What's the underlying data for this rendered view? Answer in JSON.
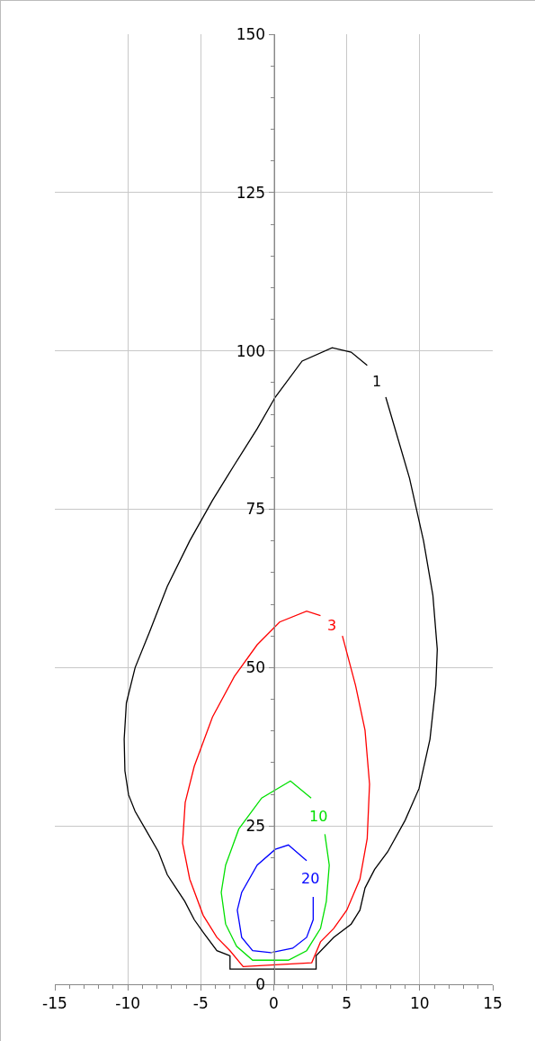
{
  "chart_data": {
    "type": "line",
    "xlim": [
      -15,
      15
    ],
    "ylim": [
      0,
      150
    ],
    "xticks": [
      -15,
      -10,
      -5,
      0,
      5,
      10,
      15
    ],
    "yticks": [
      0,
      25,
      50,
      75,
      100,
      125,
      150
    ],
    "grid": true,
    "marker": "none",
    "line_style": "solid",
    "legend": false,
    "series": [
      {
        "name": "1",
        "color": "#000000",
        "x": [
          7.67,
          9.3,
          10.26,
          10.9,
          11.2,
          11.1,
          10.7,
          9.95,
          9.0,
          7.8,
          6.9,
          6.25,
          5.9,
          5.3,
          4.1,
          2.9,
          2.9,
          -3,
          -3,
          -3.9,
          -4.8,
          -5.45,
          -6.1,
          -6.7,
          -7.3,
          -7.9,
          -8.8,
          -9.5,
          -9.95,
          -10.2,
          -10.25,
          -10.1,
          -9.5,
          -8.5,
          -7.3,
          -5.76,
          -4.2,
          -2.7,
          -1.14,
          0.1,
          1.94,
          4.0,
          5.3,
          6.4
        ],
        "values": [
          92.7,
          79.9,
          70,
          61.4,
          52.9,
          47.2,
          38.7,
          30.9,
          25.9,
          20.9,
          18.1,
          15.2,
          11.7,
          9.5,
          7.4,
          4.5,
          2.4,
          2.4,
          4.5,
          5.3,
          8.1,
          10.2,
          13.1,
          15.2,
          17.3,
          20.9,
          24.5,
          27.3,
          29.9,
          33.7,
          38.7,
          44.4,
          50,
          55.7,
          62.8,
          70,
          76.4,
          82,
          87.7,
          92.7,
          98.4,
          100.5,
          99.8,
          97.7
        ]
      },
      {
        "name": "3",
        "color": "#ff0000",
        "x": [
          4.7,
          5.6,
          6.25,
          6.56,
          6.4,
          5.9,
          5.0,
          4.1,
          3.2,
          2.6,
          -2.1,
          -3,
          -3.9,
          -4.84,
          -5.76,
          -6.25,
          -6.07,
          -5.45,
          -4.2,
          -2.7,
          -1.14,
          0.4,
          2.25,
          3.2
        ],
        "values": [
          55,
          47.2,
          40.1,
          31.6,
          23,
          16.6,
          11.7,
          8.8,
          6.7,
          3.4,
          2.8,
          5.3,
          7.4,
          10.9,
          16.6,
          22.3,
          28.7,
          34.4,
          42.2,
          48.6,
          53.6,
          57.2,
          58.9,
          58.2
        ]
      },
      {
        "name": "10",
        "color": "#00e000",
        "x": [
          3.5,
          3.8,
          3.6,
          3.2,
          2.25,
          1,
          -1.45,
          -2.55,
          -3.3,
          -3.6,
          -3.3,
          -2.4,
          -0.83,
          1.14,
          2.56
        ],
        "values": [
          23.7,
          18.8,
          13.1,
          8.8,
          5.3,
          3.8,
          3.8,
          6,
          9.5,
          14.5,
          18.8,
          24.5,
          29.4,
          32.1,
          29.4
        ]
      },
      {
        "name": "20",
        "color": "#0000ff",
        "x": [
          2.7,
          2.7,
          2.25,
          1.3,
          -0.2,
          -1.45,
          -2.2,
          -2.5,
          -2.2,
          -1.14,
          0.1,
          1.0,
          2.25
        ],
        "values": [
          13.8,
          10.2,
          7.4,
          5.7,
          5,
          5.3,
          7.4,
          11.7,
          14.5,
          18.8,
          21.3,
          22,
          19.5
        ]
      }
    ]
  }
}
